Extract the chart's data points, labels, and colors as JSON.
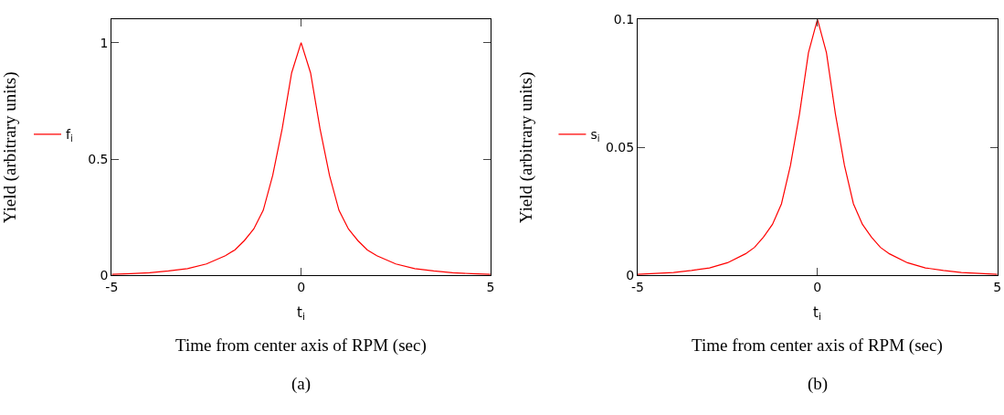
{
  "chart_data": [
    {
      "type": "line",
      "ylabel": "Yield (arbitrary units)",
      "xlabel": "Time from center axis of RPM (sec)",
      "annotations": [
        "t$_{i}$",
        "(a)"
      ],
      "x": [
        -5,
        -4.5,
        -4,
        -3.5,
        -3,
        -2.5,
        -2,
        -1.75,
        -1.5,
        -1.25,
        -1,
        -0.75,
        -0.5,
        -0.25,
        0,
        0.25,
        0.5,
        0.75,
        1,
        1.25,
        1.5,
        1.75,
        2,
        2.5,
        3,
        3.5,
        4,
        4.5,
        5
      ],
      "series": [
        {
          "name": "f$_{i}$",
          "color": "#ff0000",
          "values": [
            0.005,
            0.008,
            0.012,
            0.02,
            0.03,
            0.05,
            0.085,
            0.11,
            0.15,
            0.2,
            0.28,
            0.43,
            0.63,
            0.87,
            1,
            0.87,
            0.63,
            0.43,
            0.28,
            0.2,
            0.15,
            0.11,
            0.085,
            0.05,
            0.03,
            0.02,
            0.012,
            0.008,
            0.005
          ]
        }
      ],
      "xlim": [
        -5,
        5
      ],
      "xticks": [
        -5,
        0,
        5
      ],
      "ylim": [
        0,
        1.1
      ],
      "yticks": [
        0,
        0.5,
        1
      ],
      "legend": "left",
      "line_style": "solid",
      "marker": "none"
    },
    {
      "type": "line",
      "ylabel": "Yield (arbitrary units)",
      "xlabel": "Time from center axis of RPM (sec)",
      "annotations": [
        "t$_{i}$",
        "(b)"
      ],
      "x": [
        -5,
        -4.5,
        -4,
        -3.5,
        -3,
        -2.5,
        -2,
        -1.75,
        -1.5,
        -1.25,
        -1,
        -0.75,
        -0.5,
        -0.25,
        0,
        0.25,
        0.5,
        0.75,
        1,
        1.25,
        1.5,
        1.75,
        2,
        2.5,
        3,
        3.5,
        4,
        4.5,
        5
      ],
      "series": [
        {
          "name": "s$_{i}$",
          "color": "#ff0000",
          "values": [
            0.0005,
            0.0008,
            0.0012,
            0.002,
            0.003,
            0.005,
            0.0085,
            0.011,
            0.015,
            0.02,
            0.028,
            0.043,
            0.063,
            0.087,
            0.1,
            0.087,
            0.063,
            0.043,
            0.028,
            0.02,
            0.015,
            0.011,
            0.0085,
            0.005,
            0.003,
            0.002,
            0.0012,
            0.0008,
            0.0005
          ]
        }
      ],
      "xlim": [
        -5,
        5
      ],
      "xticks": [
        -5,
        0,
        5
      ],
      "ylim": [
        0,
        0.1
      ],
      "yticks": [
        0,
        0.05,
        0.1
      ],
      "legend": "left",
      "line_style": "solid",
      "marker": "none"
    }
  ]
}
